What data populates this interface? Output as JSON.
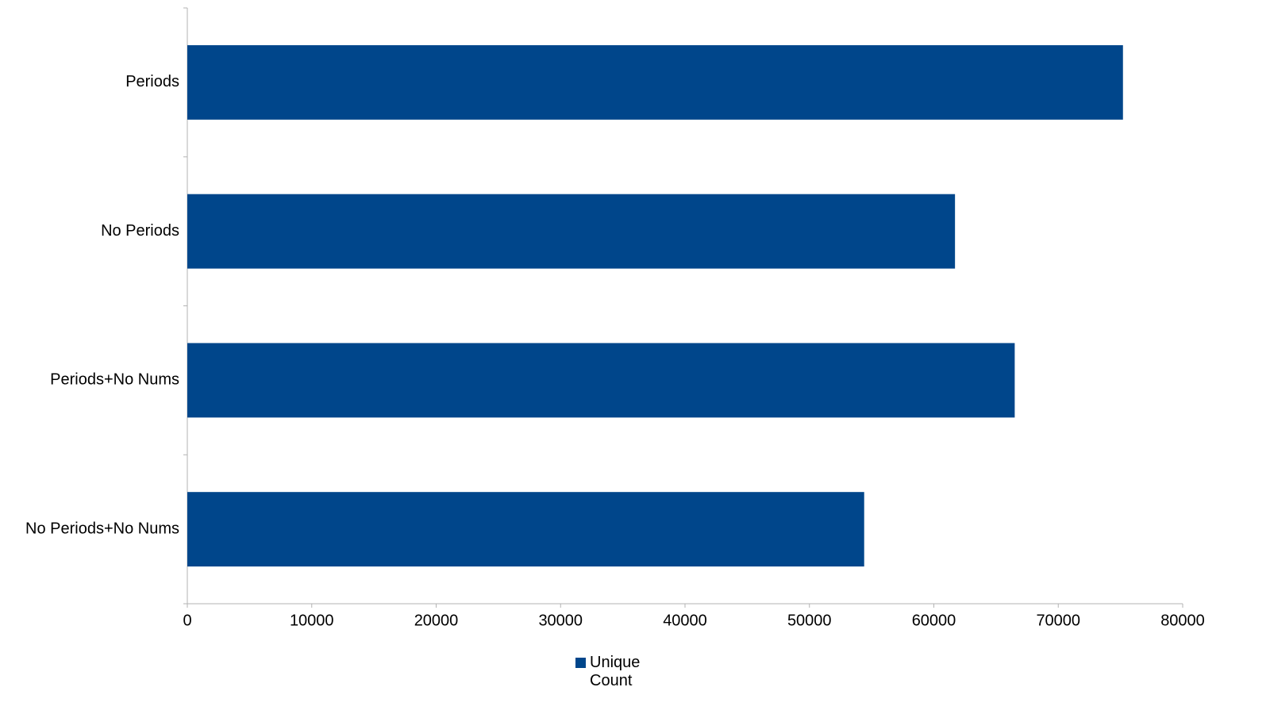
{
  "chart_data": {
    "type": "bar",
    "orientation": "horizontal",
    "categories": [
      "Periods",
      "No Periods",
      "Periods+No Nums",
      "No Periods+No Nums"
    ],
    "series": [
      {
        "name": "Unique Count",
        "color": "#00468b",
        "values": [
          75200,
          61700,
          66500,
          54400
        ]
      }
    ],
    "xlim": [
      0,
      80000
    ],
    "xticks": [
      0,
      10000,
      20000,
      30000,
      40000,
      50000,
      60000,
      70000,
      80000
    ],
    "grid": false,
    "legend": "bottom"
  }
}
